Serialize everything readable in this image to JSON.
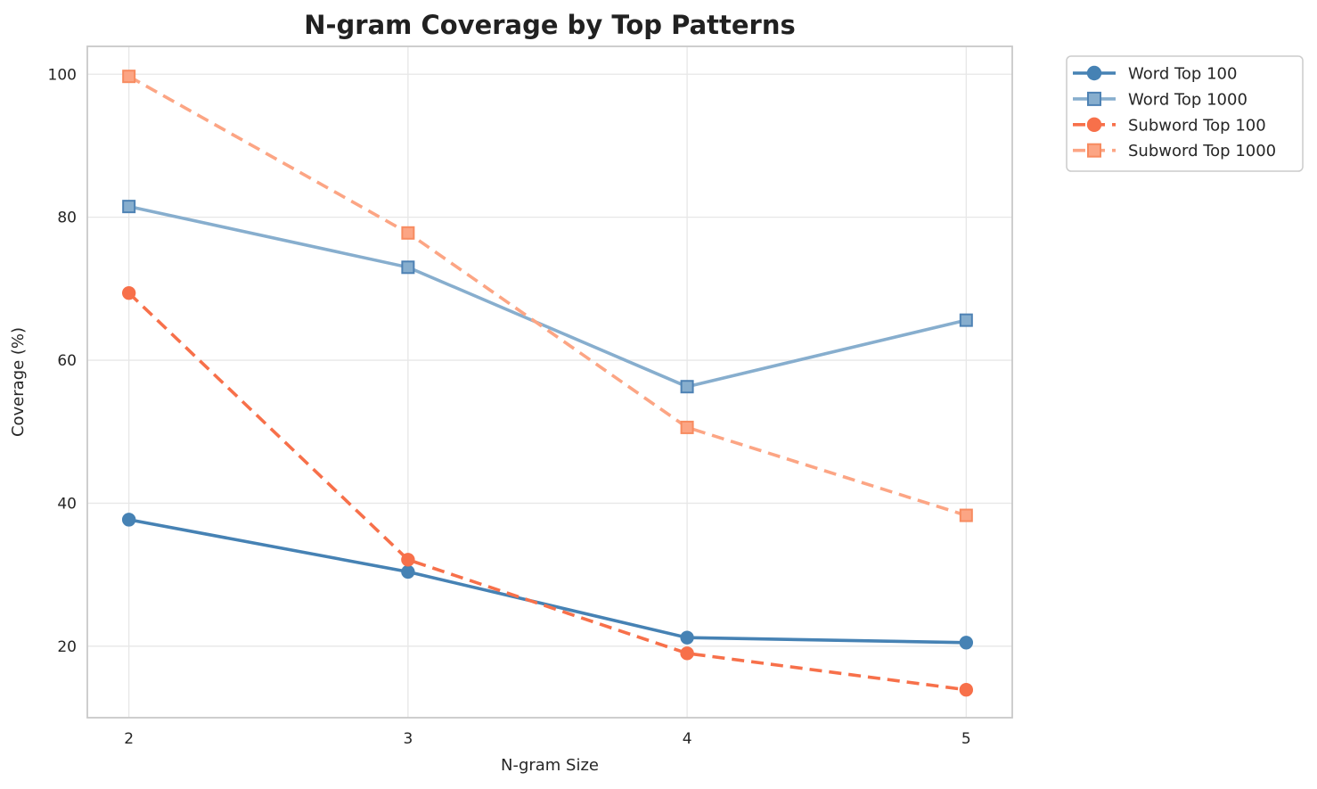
{
  "chart_data": {
    "type": "line",
    "title": "N-gram Coverage by Top Patterns",
    "xlabel": "N-gram Size",
    "ylabel": "Coverage (%)",
    "x": [
      2,
      3,
      4,
      5
    ],
    "xticks": [
      "2",
      "3",
      "4",
      "5"
    ],
    "yticks": [
      "20",
      "40",
      "60",
      "80",
      "100"
    ],
    "ytick_values": [
      20,
      40,
      60,
      80,
      100
    ],
    "xlim": [
      1.851,
      5.165
    ],
    "ylim": [
      10.0,
      103.9
    ],
    "grid": true,
    "legend_position": "upper-right-outside",
    "series": [
      {
        "name": "Word Top 100",
        "values": [
          37.7,
          30.4,
          21.2,
          20.5
        ],
        "color": "#4682B4",
        "marker_edge": "#4682B4",
        "marker": "circle",
        "line_style": "solid"
      },
      {
        "name": "Word Top 1000",
        "values": [
          81.5,
          73.0,
          56.3,
          65.6
        ],
        "color": "#87AECE",
        "marker_edge": "#4E82B4",
        "marker": "square",
        "line_style": "solid"
      },
      {
        "name": "Subword Top 100",
        "values": [
          69.4,
          32.1,
          19.0,
          13.9
        ],
        "color": "#F7704A",
        "marker_edge": "#F7704A",
        "marker": "circle",
        "line_style": "dashed"
      },
      {
        "name": "Subword Top 1000",
        "values": [
          99.7,
          77.8,
          50.6,
          38.3
        ],
        "color": "#FCA584",
        "marker_edge": "#F78B60",
        "marker": "square",
        "line_style": "dashed"
      }
    ],
    "styles": {
      "background": "#ffffff",
      "grid_color": "#E7E7E7",
      "spine_color": "#C9C9C9",
      "text_color": "#262626",
      "title_color": "#212121",
      "legend_border": "#CCCCCC",
      "legend_background": "#FFFFFF"
    }
  }
}
